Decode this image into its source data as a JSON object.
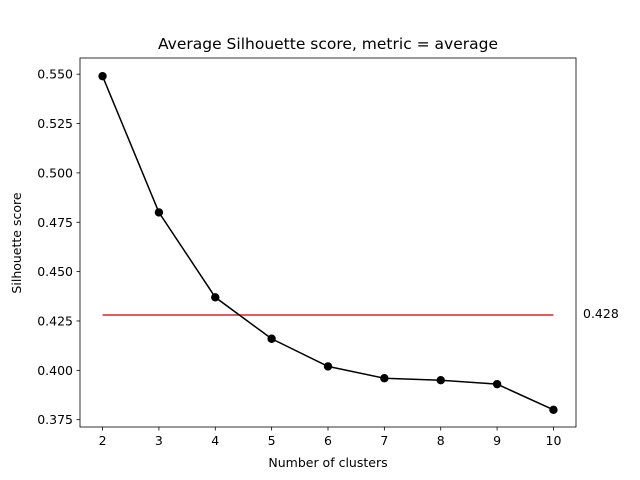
{
  "chart_data": {
    "type": "line",
    "title": "Average Silhouette score, metric = average",
    "xlabel": "Number of clusters",
    "ylabel": "Silhouette score",
    "x": [
      2,
      3,
      4,
      5,
      6,
      7,
      8,
      9,
      10
    ],
    "xticks": [
      "2",
      "3",
      "4",
      "5",
      "6",
      "7",
      "8",
      "9",
      "10"
    ],
    "xlim": [
      1.6,
      10.4
    ],
    "yticks": [
      "0.375",
      "0.400",
      "0.425",
      "0.450",
      "0.475",
      "0.500",
      "0.525",
      "0.550"
    ],
    "ylim": [
      0.3713,
      0.5582
    ],
    "grid": false,
    "series": [
      {
        "values": [
          0.549,
          0.48,
          0.437,
          0.416,
          0.402,
          0.396,
          0.395,
          0.393,
          0.38
        ],
        "color": "#000000",
        "marker": "circle"
      }
    ],
    "reference_line": {
      "y": 0.428,
      "x_range": [
        2,
        10
      ],
      "color": "#d62728",
      "label": "0.428"
    }
  }
}
